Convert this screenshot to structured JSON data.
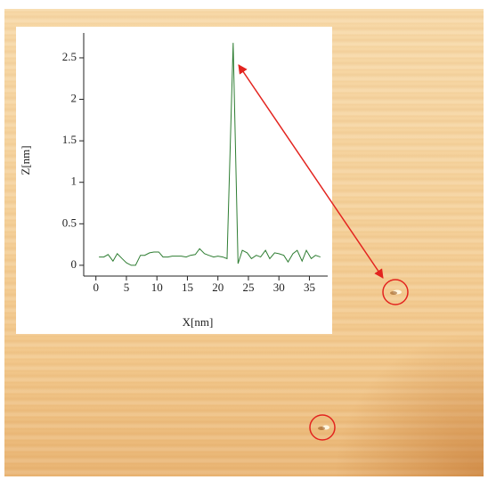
{
  "chart_data": {
    "type": "line",
    "x_label": "X[nm]",
    "y_label": "Z[nm]",
    "x": [
      0.5,
      1.3,
      2,
      2.8,
      3.5,
      4.3,
      5,
      5.8,
      6.5,
      7.3,
      8,
      8.8,
      9.5,
      10.3,
      11,
      11.8,
      12.5,
      13.3,
      14,
      14.8,
      15.5,
      16.3,
      17,
      17.8,
      18.5,
      19.3,
      20,
      20.8,
      21.5,
      22.5,
      23.3,
      24,
      24.8,
      25.5,
      26.3,
      27,
      27.8,
      28.5,
      29.3,
      30,
      30.8,
      31.5,
      32.3,
      33,
      33.8,
      34.5,
      35.3,
      36,
      36.8
    ],
    "series": [
      {
        "color": "#2e7d32",
        "values": [
          0.1,
          0.1,
          0.13,
          0.05,
          0.14,
          0.08,
          0.03,
          0.0,
          0.0,
          0.12,
          0.12,
          0.15,
          0.16,
          0.16,
          0.1,
          0.1,
          0.11,
          0.11,
          0.11,
          0.1,
          0.12,
          0.13,
          0.2,
          0.14,
          0.12,
          0.1,
          0.11,
          0.1,
          0.08,
          2.68,
          0.02,
          0.18,
          0.15,
          0.08,
          0.12,
          0.1,
          0.18,
          0.08,
          0.15,
          0.14,
          0.12,
          0.04,
          0.14,
          0.18,
          0.05,
          0.18,
          0.08,
          0.12,
          0.1
        ]
      }
    ],
    "xlim": [
      -2,
      38
    ],
    "ylim": [
      -0.13,
      2.8
    ],
    "xticks": [
      0,
      5,
      10,
      15,
      20,
      25,
      30,
      35
    ],
    "yticks": [
      0,
      0.5,
      1,
      1.5,
      2,
      2.5
    ]
  }
}
